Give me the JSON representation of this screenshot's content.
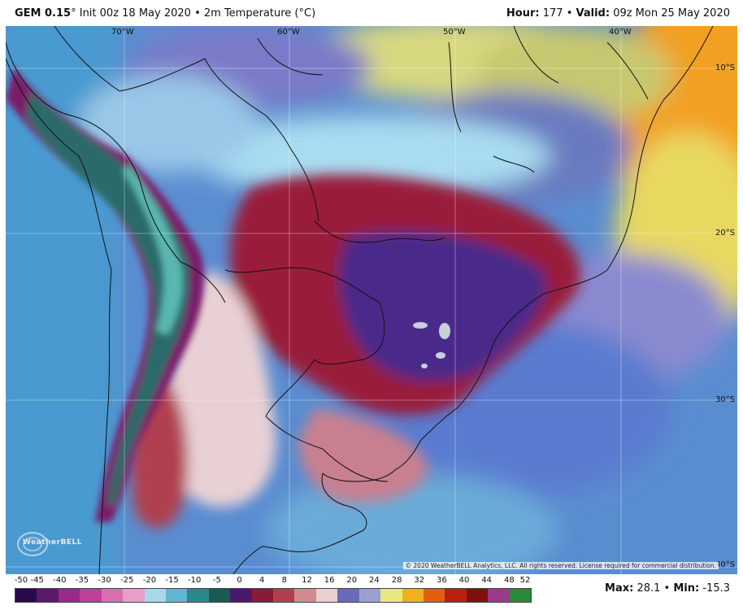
{
  "header": {
    "model": "GEM 0.15",
    "model_unit": "°",
    "init": "Init 00z 18 May 2020",
    "separator": "•",
    "field": "2m Temperature (",
    "field_unit": "°C)",
    "hour_label": "Hour:",
    "hour_value": "177",
    "valid_label": "Valid:",
    "valid_value": "09z Mon 25 May 2020"
  },
  "map": {
    "longitude_labels": [
      "70°W",
      "60°W",
      "50°W",
      "40°W"
    ],
    "latitude_labels": [
      "10°S",
      "20°S",
      "30°S",
      "40°S"
    ],
    "copyright": "© 2020 WeatherBELL Analytics, LLC. All rights reserved. License required for commercial distribution.",
    "logo_text": "WeatherBELL"
  },
  "legend": {
    "ticks": [
      "-50",
      "-45",
      "-40",
      "-35",
      "-30",
      "-25",
      "-20",
      "-15",
      "-10",
      "-5",
      "0",
      "4",
      "8",
      "12",
      "16",
      "20",
      "24",
      "28",
      "32",
      "36",
      "40",
      "44",
      "48",
      "52"
    ],
    "colors": [
      "#2a0a4a",
      "#5a1a6a",
      "#9a2a8a",
      "#c0409a",
      "#d870b0",
      "#e6a0c8",
      "#a8d8ec",
      "#60b8d0",
      "#2a8a8a",
      "#1a5a50",
      "#4a1a6a",
      "#8a1a3a",
      "#b04050",
      "#d08a90",
      "#e8d0d0",
      "#6a6ab8",
      "#9aa0d0",
      "#e8e880",
      "#f0b020",
      "#e06010",
      "#b82010",
      "#801010",
      "#9a3a8a",
      "#2a8a3a"
    ],
    "max_label": "Max:",
    "max_value": "28.1",
    "min_label": "Min:",
    "min_value": "-15.3"
  }
}
